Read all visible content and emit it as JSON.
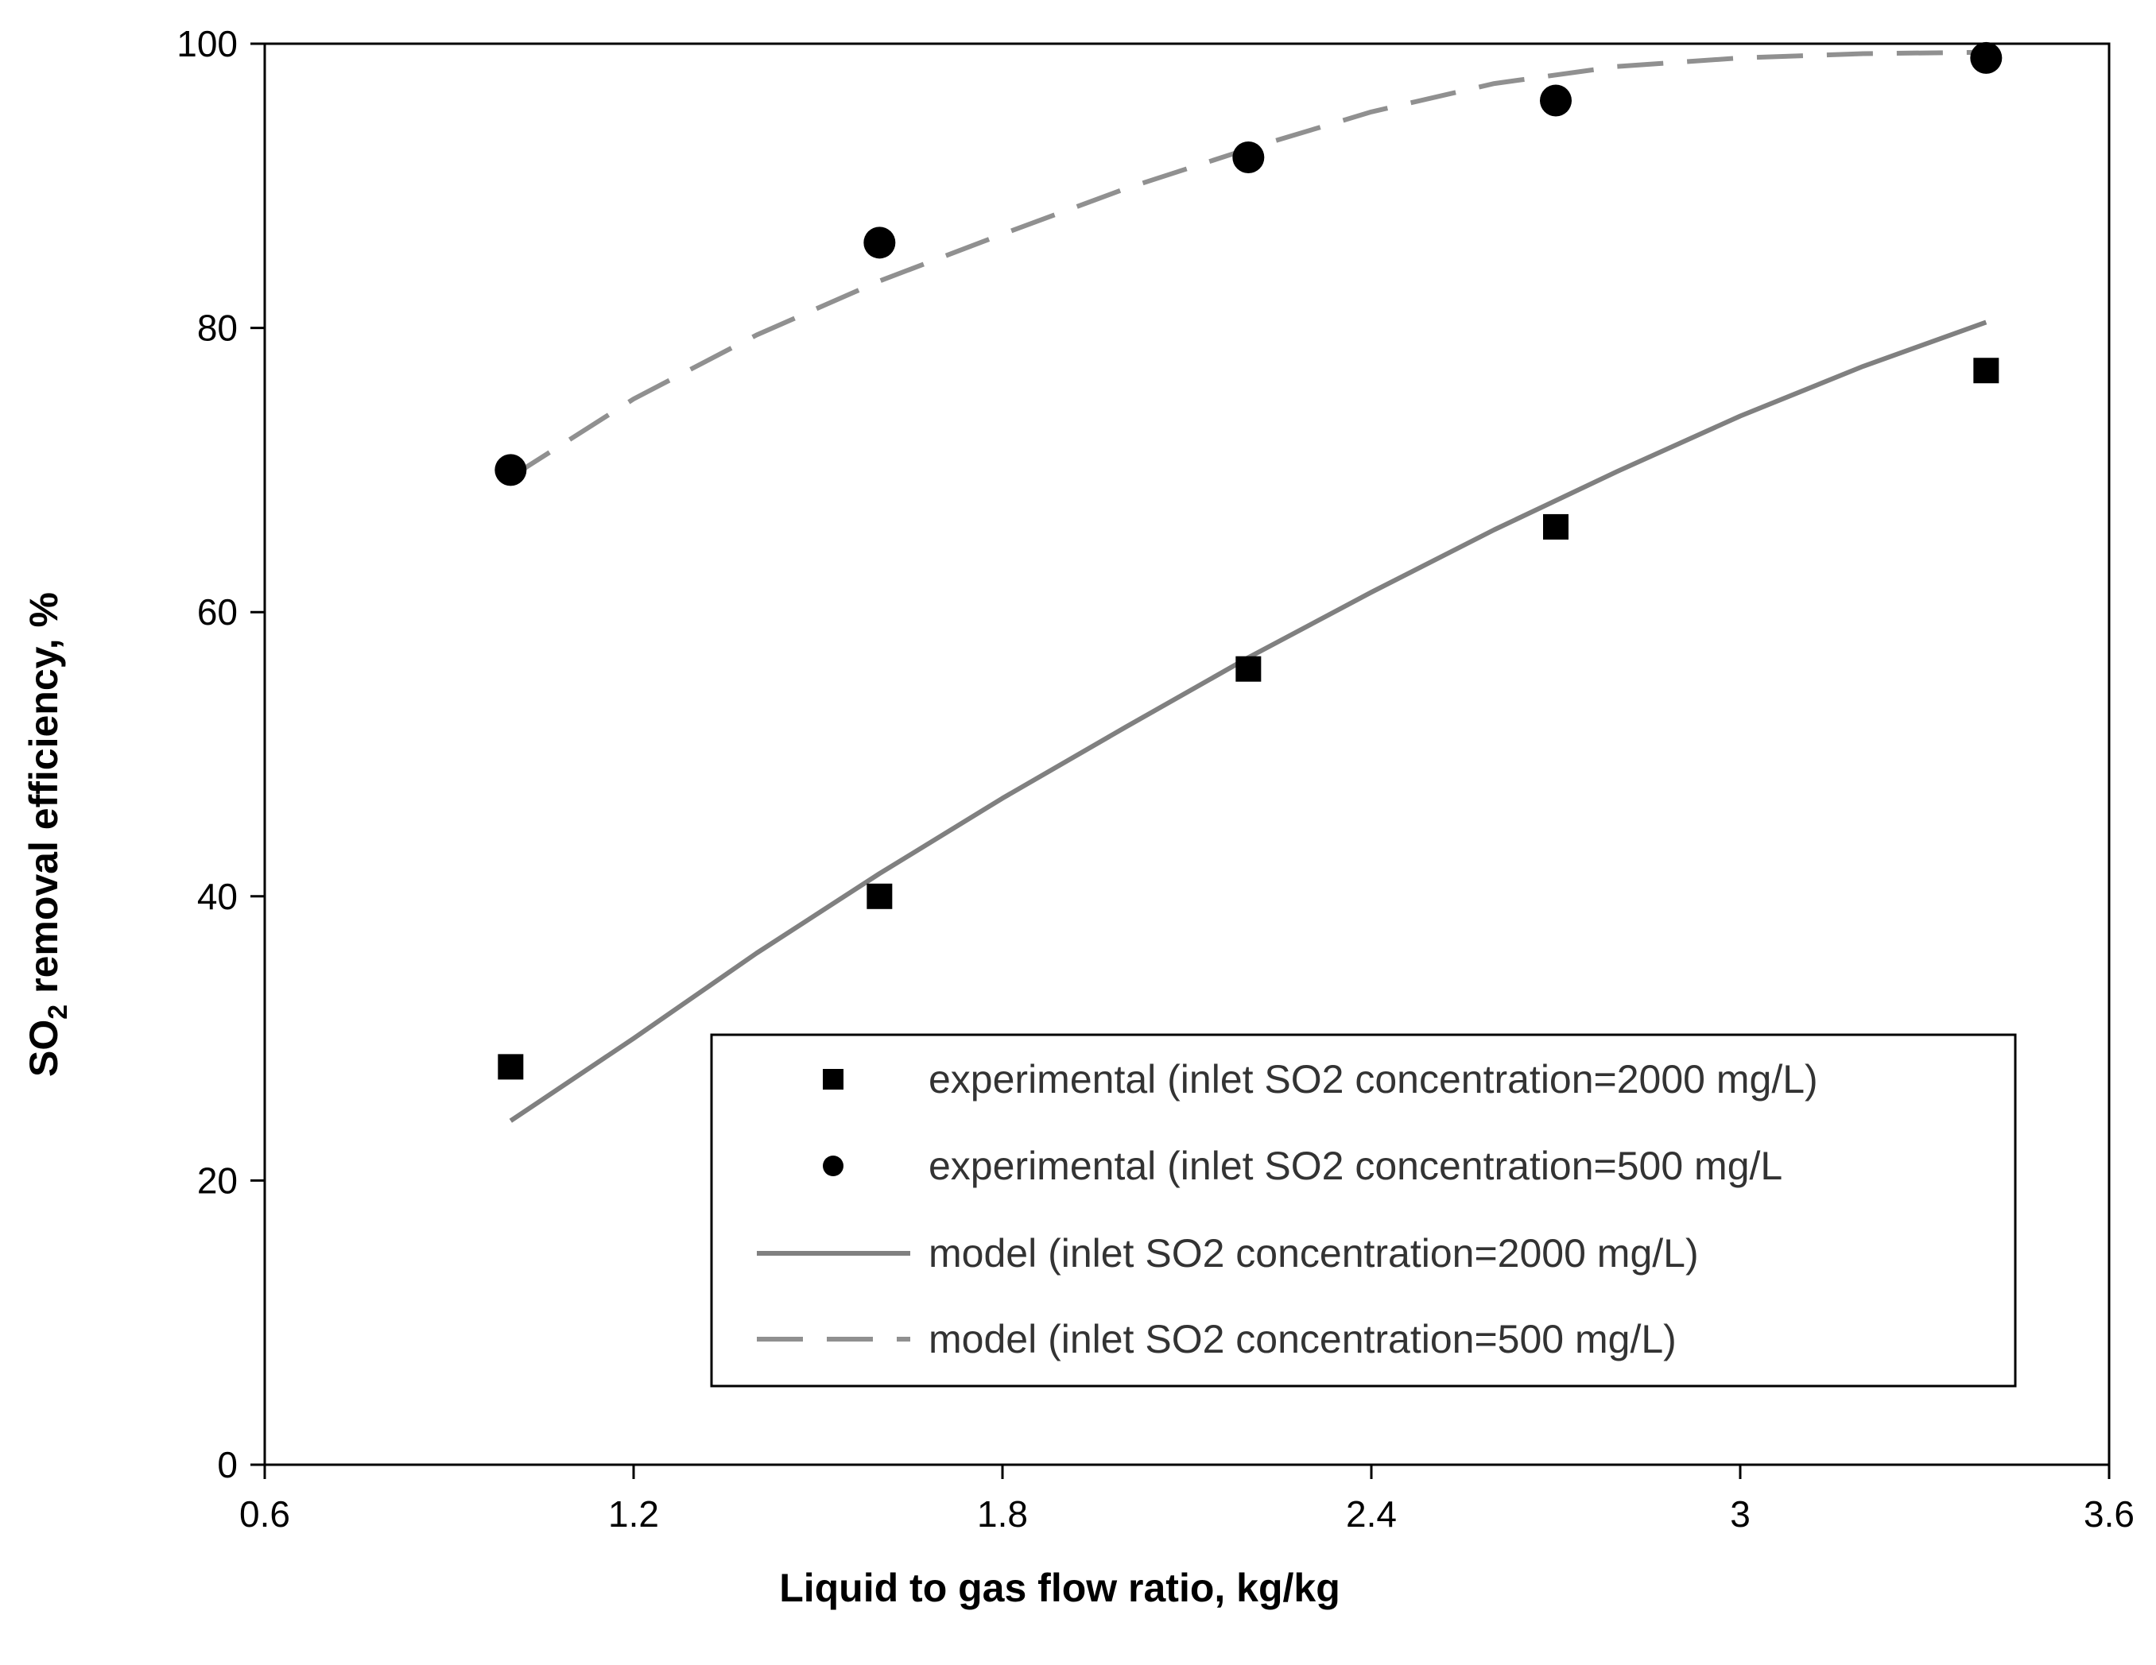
{
  "chart_data": {
    "type": "scatter",
    "xlabel": "Liquid to gas flow ratio, kg/kg",
    "ylabel": {
      "prefix": "SO",
      "subscript": "2",
      "suffix": " removal efficiency,  %"
    },
    "xlim": [
      0.6,
      3.6
    ],
    "ylim": [
      0,
      100
    ],
    "x_ticks": [
      0.6,
      1.2,
      1.8,
      2.4,
      3,
      3.6
    ],
    "x_tick_labels": [
      "0.6",
      "1.2",
      "1.8",
      "2.4",
      "3",
      "3.6"
    ],
    "y_ticks": [
      0,
      20,
      40,
      60,
      80,
      100
    ],
    "y_tick_labels": [
      "0",
      "20",
      "40",
      "60",
      "80",
      "100"
    ],
    "grid": false,
    "legend_position": "bottom-right",
    "series": [
      {
        "name": "experimental (inlet SO2 concentration=2000 mg/L)",
        "kind": "marker",
        "marker": "square",
        "color": "#000000",
        "x": [
          1.0,
          1.6,
          2.2,
          2.7,
          3.4
        ],
        "y": [
          28,
          40,
          56,
          66,
          77
        ]
      },
      {
        "name": "experimental (inlet SO2 concentration=500 mg/L",
        "kind": "marker",
        "marker": "circle",
        "color": "#000000",
        "x": [
          1.0,
          1.6,
          2.2,
          2.7,
          3.4
        ],
        "y": [
          70,
          86,
          92,
          96,
          99
        ]
      },
      {
        "name": "model (inlet SO2 concentration=2000 mg/L)",
        "kind": "line",
        "dash": "solid",
        "color": "#808080",
        "x": [
          1.0,
          1.2,
          1.4,
          1.6,
          1.8,
          2.0,
          2.2,
          2.4,
          2.6,
          2.8,
          3.0,
          3.2,
          3.4
        ],
        "y": [
          24.2,
          30.0,
          36.0,
          41.6,
          46.9,
          51.9,
          56.8,
          61.4,
          65.8,
          69.9,
          73.8,
          77.3,
          80.4
        ]
      },
      {
        "name": "model (inlet SO2 concentration=500 mg/L)",
        "kind": "line",
        "dash": "dashed",
        "color": "#909090",
        "x": [
          1.0,
          1.2,
          1.4,
          1.6,
          1.8,
          2.0,
          2.2,
          2.4,
          2.6,
          2.8,
          3.0,
          3.2,
          3.4
        ],
        "y": [
          69.5,
          75.0,
          79.5,
          83.3,
          86.6,
          89.8,
          92.6,
          95.2,
          97.2,
          98.4,
          99.0,
          99.3,
          99.4
        ]
      }
    ]
  }
}
